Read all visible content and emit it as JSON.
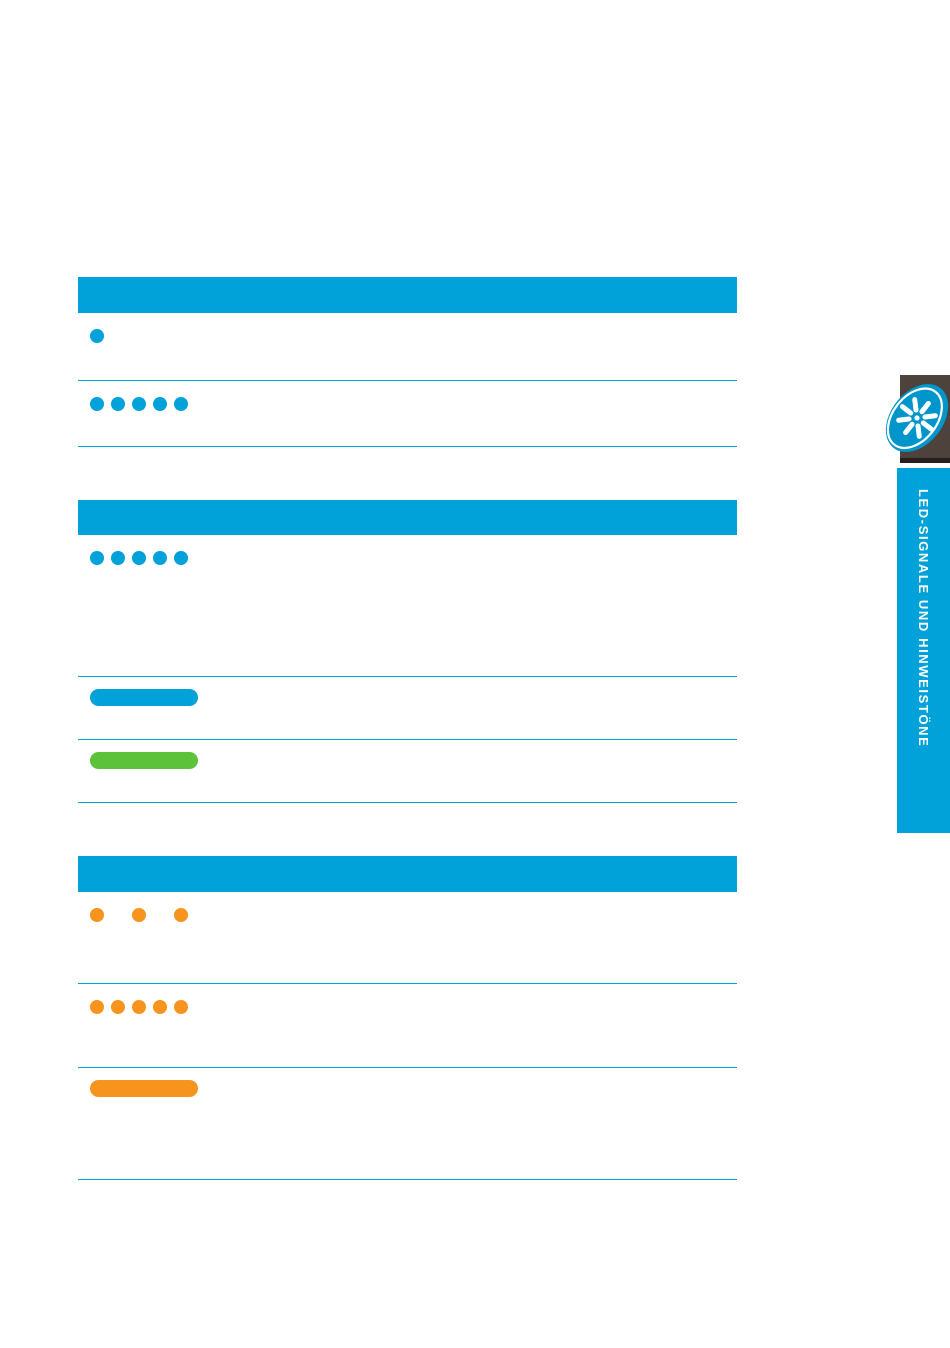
{
  "page": {
    "background": "#ffffff"
  },
  "colors": {
    "cyan": "#00A2D9",
    "green": "#5CC23A",
    "orange": "#F7941E",
    "tab_brown": "#4E433C",
    "tab_brown_dark": "#261F1B",
    "icon_blue": "#0095CB",
    "tab_text": "#ffffff"
  },
  "sidebar_tab": {
    "label": "LED-SIGNALE UND HINWEISTÖNE",
    "icon": "flower-asterisk-icon"
  },
  "tables": [
    {
      "header_label": "",
      "rows": [
        {
          "indicator": {
            "style": "dots",
            "color": "cyan",
            "count": 1,
            "spaced": false
          }
        },
        {
          "indicator": {
            "style": "dots",
            "color": "cyan",
            "count": 5,
            "spaced": false
          }
        }
      ]
    },
    {
      "header_label": "",
      "rows": [
        {
          "indicator": {
            "style": "dots",
            "color": "cyan",
            "count": 5,
            "spaced": false
          }
        },
        {
          "indicator": {
            "style": "pill",
            "color": "cyan"
          }
        },
        {
          "indicator": {
            "style": "pill",
            "color": "green"
          }
        }
      ]
    },
    {
      "header_label": "",
      "rows": [
        {
          "indicator": {
            "style": "dots",
            "color": "orange",
            "count": 3,
            "spaced": true
          }
        },
        {
          "indicator": {
            "style": "dots",
            "color": "orange",
            "count": 5,
            "spaced": false
          }
        },
        {
          "indicator": {
            "style": "pill",
            "color": "orange"
          }
        }
      ]
    }
  ]
}
